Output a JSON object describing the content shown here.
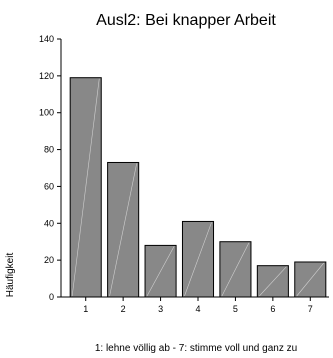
{
  "chart_data": {
    "type": "bar",
    "title": "Ausl2: Bei knapper Arbeit",
    "xlabel": "1: lehne völlig ab - 7: stimme voll und ganz zu",
    "ylabel": "Häufigkeit",
    "categories": [
      "1",
      "2",
      "3",
      "4",
      "5",
      "6",
      "7"
    ],
    "values": [
      119,
      73,
      28,
      41,
      30,
      17,
      19
    ],
    "ylim": [
      0,
      140
    ],
    "yticks": [
      0,
      20,
      40,
      60,
      80,
      100,
      120,
      140
    ],
    "grid": false,
    "bar_color": "#888888"
  }
}
